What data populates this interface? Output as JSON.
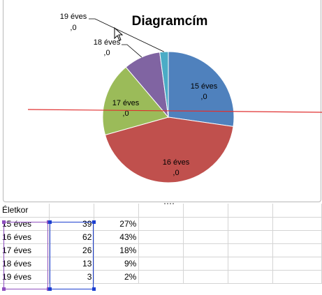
{
  "chart": {
    "title": "Diagramcím",
    "slice_labels": [
      {
        "line1": "15 éves",
        "line2": ",0"
      },
      {
        "line1": "16 éves",
        "line2": ",0"
      },
      {
        "line1": "17 éves",
        "line2": ",0"
      },
      {
        "line1": "18 éves",
        "line2": ",0"
      },
      {
        "line1": "19 éves",
        "line2": ",0"
      }
    ]
  },
  "chart_data": {
    "type": "pie",
    "title": "Diagramcím",
    "categories": [
      "15 éves",
      "16 éves",
      "17 éves",
      "18 éves",
      "19 éves"
    ],
    "values": [
      39,
      62,
      26,
      13,
      3
    ],
    "colors": [
      "#4f81bd",
      "#c0504d",
      "#9bbb59",
      "#8064a2",
      "#4bacc6"
    ]
  },
  "sheet": {
    "header": "Életkor",
    "rows": [
      {
        "label": "15 éves",
        "count": "39",
        "pct": "27%"
      },
      {
        "label": "16 éves",
        "count": "62",
        "pct": "43%"
      },
      {
        "label": "17 éves",
        "count": "26",
        "pct": "18%"
      },
      {
        "label": "18 éves",
        "count": "13",
        "pct": "9%"
      },
      {
        "label": "19 éves",
        "count": "3",
        "pct": "2%"
      }
    ]
  },
  "colors": {
    "red_line": "#e03030",
    "selection_purple": "#8e4fbf",
    "selection_blue": "#1c3fd0"
  },
  "icons": {
    "cursor": "mouse-pointer-icon"
  }
}
